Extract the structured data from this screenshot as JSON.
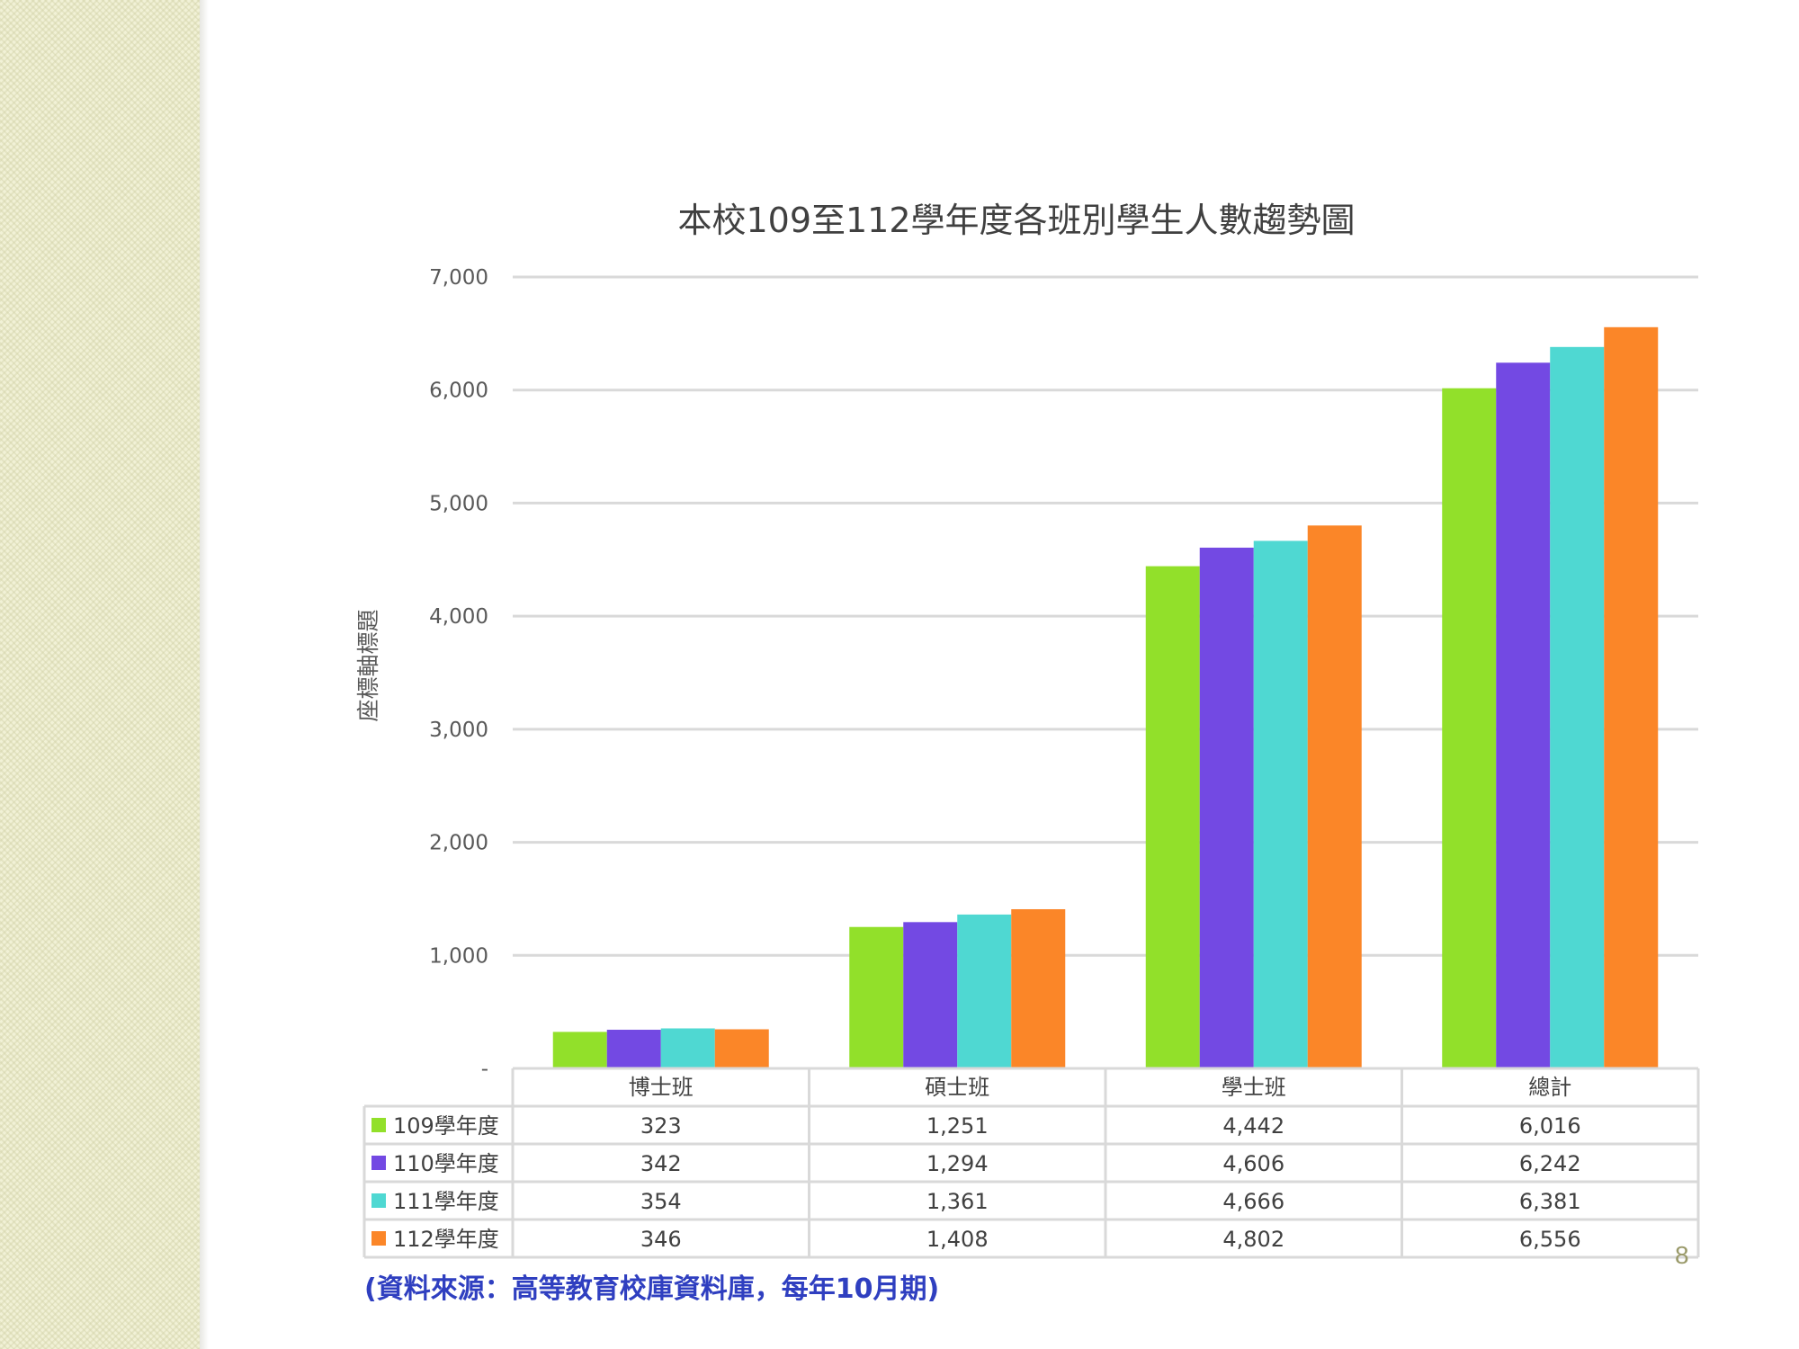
{
  "chart_data": {
    "type": "bar",
    "title": "本校109至112學年度各班別學生人數趨勢圖",
    "ylabel": "座標軸標題",
    "xlabel": "",
    "ylim": [
      0,
      7000
    ],
    "y_ticks": [
      {
        "value": 0,
        "label": "-"
      },
      {
        "value": 1000,
        "label": "1,000"
      },
      {
        "value": 2000,
        "label": "2,000"
      },
      {
        "value": 3000,
        "label": "3,000"
      },
      {
        "value": 4000,
        "label": "4,000"
      },
      {
        "value": 5000,
        "label": "5,000"
      },
      {
        "value": 6000,
        "label": "6,000"
      },
      {
        "value": 7000,
        "label": "7,000"
      }
    ],
    "categories": [
      "博士班",
      "碩士班",
      "學士班",
      "總計"
    ],
    "series": [
      {
        "name": "109學年度",
        "color": "#92e02a",
        "values": [
          323,
          1251,
          4442,
          6016
        ],
        "labels": [
          "323",
          "1,251",
          "4,442",
          "6,016"
        ]
      },
      {
        "name": "110學年度",
        "color": "#7349e3",
        "values": [
          342,
          1294,
          4606,
          6242
        ],
        "labels": [
          "342",
          "1,294",
          "4,606",
          "6,242"
        ]
      },
      {
        "name": "111學年度",
        "color": "#4fd8d2",
        "values": [
          354,
          1361,
          4666,
          6381
        ],
        "labels": [
          "354",
          "1,361",
          "4,666",
          "6,381"
        ]
      },
      {
        "name": "112學年度",
        "color": "#fb8628",
        "values": [
          346,
          1408,
          4802,
          6556
        ],
        "labels": [
          "346",
          "1,408",
          "4,802",
          "6,556"
        ]
      }
    ],
    "legend": "data-table-left",
    "grid": true
  },
  "source_note": "(資料來源：高等教育校庫資料庫，每年10月期)",
  "page_number": "8"
}
